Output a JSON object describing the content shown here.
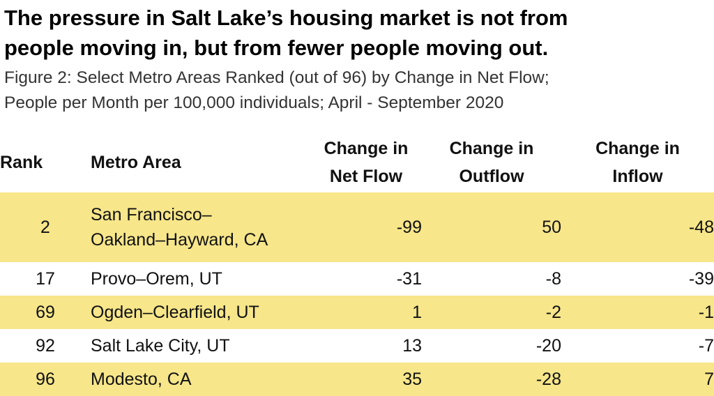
{
  "headline": {
    "line1": "The pressure in Salt Lake’s housing market is not from",
    "line2": "people moving in, but from fewer people moving out."
  },
  "subtitle": {
    "line1": "Figure 2: Select Metro Areas Ranked (out of 96) by Change in Net Flow;",
    "line2": "People per Month per 100,000 individuals; April - September 2020"
  },
  "colors": {
    "highlight_row": "#f7e68a",
    "background": "#ffffff",
    "text": "#111111"
  },
  "chart_data": {
    "type": "table",
    "columns": [
      {
        "key": "rank",
        "line1": "Rank",
        "line2": ""
      },
      {
        "key": "metro",
        "line1": "Metro Area",
        "line2": ""
      },
      {
        "key": "net",
        "line1": "Change in",
        "line2": "Net Flow"
      },
      {
        "key": "out",
        "line1": "Change in",
        "line2": "Outflow"
      },
      {
        "key": "in",
        "line1": "Change in",
        "line2": "Inflow"
      }
    ],
    "rows": [
      {
        "rank": "2",
        "metro_line1": "San Francisco–",
        "metro_line2": "Oakland–Hayward, CA",
        "net": "-99",
        "out": "50",
        "in": "-48",
        "highlight": true
      },
      {
        "rank": "17",
        "metro_line1": "Provo–Orem, UT",
        "metro_line2": "",
        "net": "-31",
        "out": "-8",
        "in": "-39",
        "highlight": false
      },
      {
        "rank": "69",
        "metro_line1": "Ogden–Clearfield, UT",
        "metro_line2": "",
        "net": "1",
        "out": "-2",
        "in": "-1",
        "highlight": true
      },
      {
        "rank": "92",
        "metro_line1": "Salt Lake City, UT",
        "metro_line2": "",
        "net": "13",
        "out": "-20",
        "in": "-7",
        "highlight": false
      },
      {
        "rank": "96",
        "metro_line1": "Modesto, CA",
        "metro_line2": "",
        "net": "35",
        "out": "-28",
        "in": "7",
        "highlight": true
      }
    ]
  }
}
